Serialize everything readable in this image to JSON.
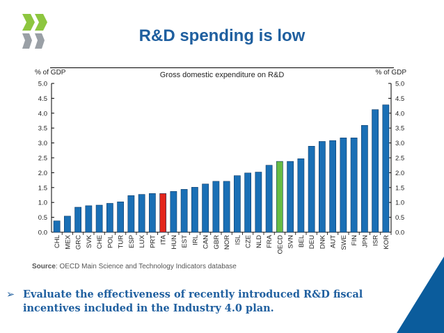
{
  "slide": {
    "title": "R&D spending is low",
    "source_label": "Source",
    "source_text": ": OECD Main Science and Technology Indicators database",
    "bullet_symbol": "➢",
    "bullet_text": "Evaluate the effectiveness of recently introduced R&D fiscal incentives included in the Industry 4.0 plan."
  },
  "colors": {
    "bar_default": "#1a6fb5",
    "bar_ita": "#e3261c",
    "bar_oecd": "#66bb44",
    "title": "#1f5f9f",
    "corner": "#0b5c9c"
  },
  "chart_data": {
    "type": "bar",
    "title": "Gross domestic expenditure on R&D",
    "ylabel_left": "% of GDP",
    "ylabel_right": "% of GDP",
    "ylim": [
      0,
      5.0
    ],
    "yticks": [
      "0.0",
      "0.5",
      "1.0",
      "1.5",
      "2.0",
      "2.5",
      "3.0",
      "3.5",
      "4.0",
      "4.5",
      "5.0"
    ],
    "categories": [
      "CHL",
      "MEX",
      "GRC",
      "SVK",
      "CHE",
      "POL",
      "TUR",
      "ESP",
      "LUX",
      "PRT",
      "ITA",
      "HUN",
      "EST",
      "IRL",
      "CAN",
      "GBR",
      "NOR",
      "ISL",
      "CZE",
      "NLD",
      "FRA",
      "OECD",
      "SVN",
      "BEL",
      "DEU",
      "DNK",
      "AUT",
      "SWE",
      "FIN",
      "JPN",
      "ISR",
      "KOR"
    ],
    "values": [
      0.38,
      0.54,
      0.84,
      0.89,
      0.91,
      0.97,
      1.02,
      1.23,
      1.27,
      1.3,
      1.3,
      1.37,
      1.44,
      1.51,
      1.62,
      1.71,
      1.71,
      1.9,
      1.99,
      2.02,
      2.25,
      2.38,
      2.38,
      2.47,
      2.89,
      3.05,
      3.08,
      3.17,
      3.17,
      3.59,
      4.12,
      4.28
    ],
    "highlight": {
      "ITA": "bar_ita",
      "OECD": "bar_oecd"
    },
    "grid": false
  }
}
